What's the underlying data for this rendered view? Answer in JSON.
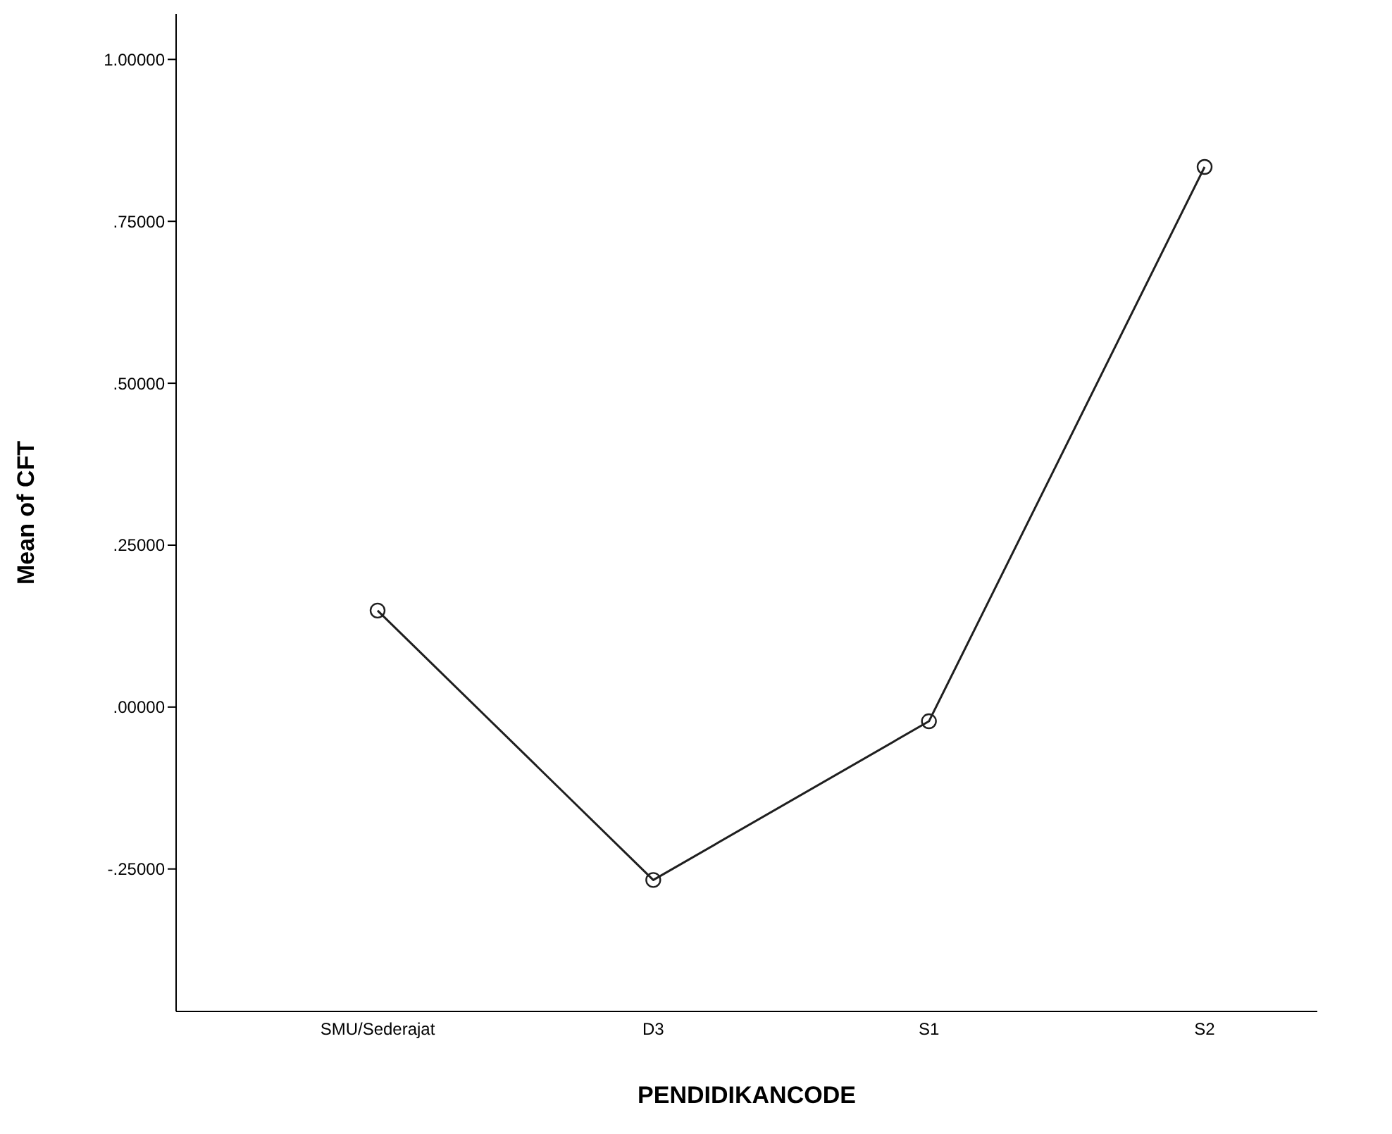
{
  "chart_data": {
    "type": "line",
    "xlabel": "PENDIDIKANCODE",
    "ylabel": "Mean of CFT",
    "categories": [
      "SMU/Sederajat",
      "D3",
      "S1",
      "S2"
    ],
    "series": [
      {
        "color": "#1f1f1f",
        "values": [
          0.149,
          -0.267,
          -0.022,
          0.834
        ]
      }
    ],
    "ylim": [
      -0.47,
      1.07
    ],
    "yticks": [
      {
        "value": -0.25,
        "label": "-.25000"
      },
      {
        "value": 0,
        "label": ".00000"
      },
      {
        "value": 0.25,
        "label": ".25000"
      },
      {
        "value": 0.5,
        "label": ".50000"
      },
      {
        "value": 0.75,
        "label": ".75000"
      },
      {
        "value": 1,
        "label": "1.00000"
      }
    ],
    "marker": "circle",
    "grid": false,
    "legend": false
  }
}
